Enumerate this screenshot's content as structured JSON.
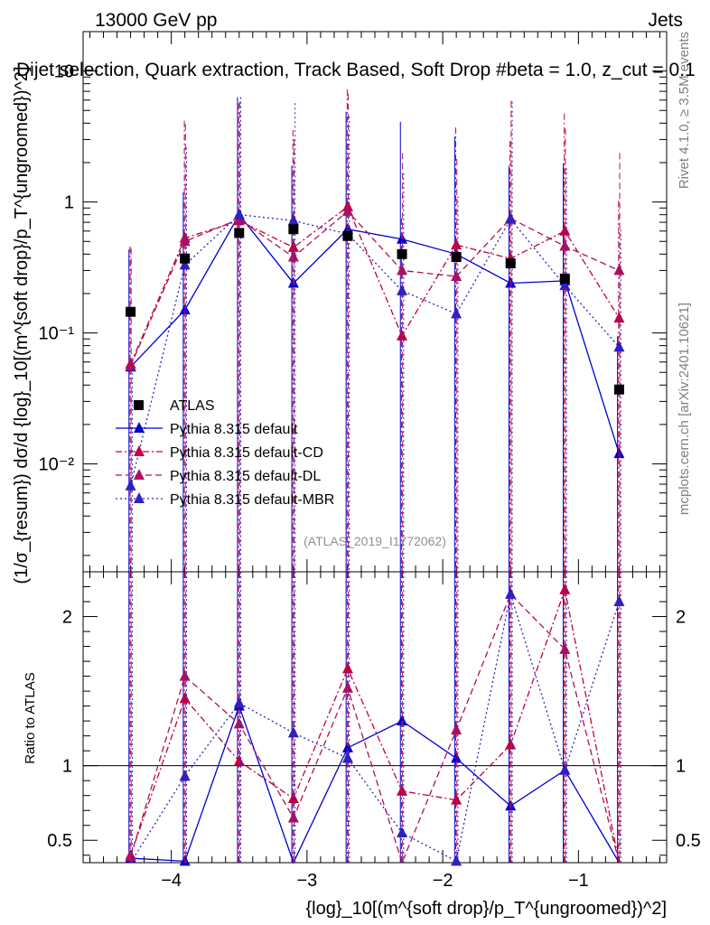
{
  "header": {
    "energy_label": "13000 GeV pp",
    "process_label": "Jets"
  },
  "side_labels": {
    "rivet": "Rivet 4.1.0, ≥ 3.5M events",
    "mcplots": "mcplots.cern.ch [arXiv:2401.10621]"
  },
  "chart_data": {
    "type": "line",
    "title": "Dijet selection, Quark extraction, Track Based, Soft Drop #beta = 1.0, z_cut = 0.1",
    "analysis_id": "(ATLAS_2019_I1772062)",
    "xlabel": "{log}_10[(m^{soft drop}/p_T^{ungroomed})^2]",
    "ylabel": "(1/σ_{resum}) dσ/d {log}_10[(m^{soft drop}/p_T^{ungroomed})^2]",
    "ratio_ylabel": "Ratio to ATLAS",
    "xlim": [
      -4.65,
      -0.35
    ],
    "ylim_log": [
      0.0015,
      20
    ],
    "ratio_ylim": [
      0.35,
      2.3
    ],
    "x_ticks": [
      "−4",
      "−3",
      "−2",
      "−1"
    ],
    "y_ticks": [
      "10⁻²",
      "10⁻¹",
      "1",
      "10"
    ],
    "ratio_ticks": [
      "0.5",
      "1",
      "2"
    ],
    "x": [
      -4.3,
      -3.9,
      -3.5,
      -3.1,
      -2.7,
      -2.3,
      -1.9,
      -1.5,
      -1.1,
      -0.7
    ],
    "reference": {
      "name": "ATLAS",
      "color": "#000000",
      "values": [
        0.145,
        0.37,
        0.58,
        0.62,
        0.55,
        0.4,
        0.38,
        0.34,
        0.26,
        0.037
      ]
    },
    "series": [
      {
        "name": "Pythia 8.315 default",
        "color": "#0000d0",
        "values": [
          0.055,
          0.15,
          0.8,
          0.24,
          0.62,
          0.52,
          0.4,
          0.24,
          0.25,
          0.012
        ],
        "ratio": [
          0.38,
          0.36,
          1.4,
          0.3,
          1.12,
          1.3,
          1.05,
          0.73,
          0.97,
          0.33
        ]
      },
      {
        "name": "Pythia 8.315 default-CD",
        "color": "#c00040",
        "values": [
          0.058,
          0.53,
          0.72,
          0.45,
          0.92,
          0.095,
          0.47,
          0.37,
          0.6,
          0.13
        ],
        "ratio": [
          0.4,
          1.45,
          1.03,
          0.78,
          1.65,
          0.83,
          0.77,
          1.14,
          2.18,
          0.3
        ]
      },
      {
        "name": "Pythia 8.315 default-DL",
        "color": "#b0105a",
        "values": [
          0.056,
          0.5,
          0.74,
          0.38,
          0.85,
          0.3,
          0.27,
          0.75,
          0.46,
          0.3
        ],
        "ratio": [
          0.39,
          1.6,
          1.28,
          0.65,
          1.52,
          0.3,
          1.24,
          2.15,
          1.78,
          0.28
        ]
      },
      {
        "name": "Pythia 8.315 default-MBR",
        "color": "#3020c0",
        "values": [
          0.0068,
          0.33,
          0.8,
          0.72,
          0.57,
          0.21,
          0.14,
          0.74,
          0.23,
          0.078
        ],
        "ratio": [
          0.3,
          0.93,
          1.42,
          1.22,
          1.05,
          0.55,
          0.36,
          2.15,
          0.97,
          2.1
        ]
      }
    ]
  }
}
